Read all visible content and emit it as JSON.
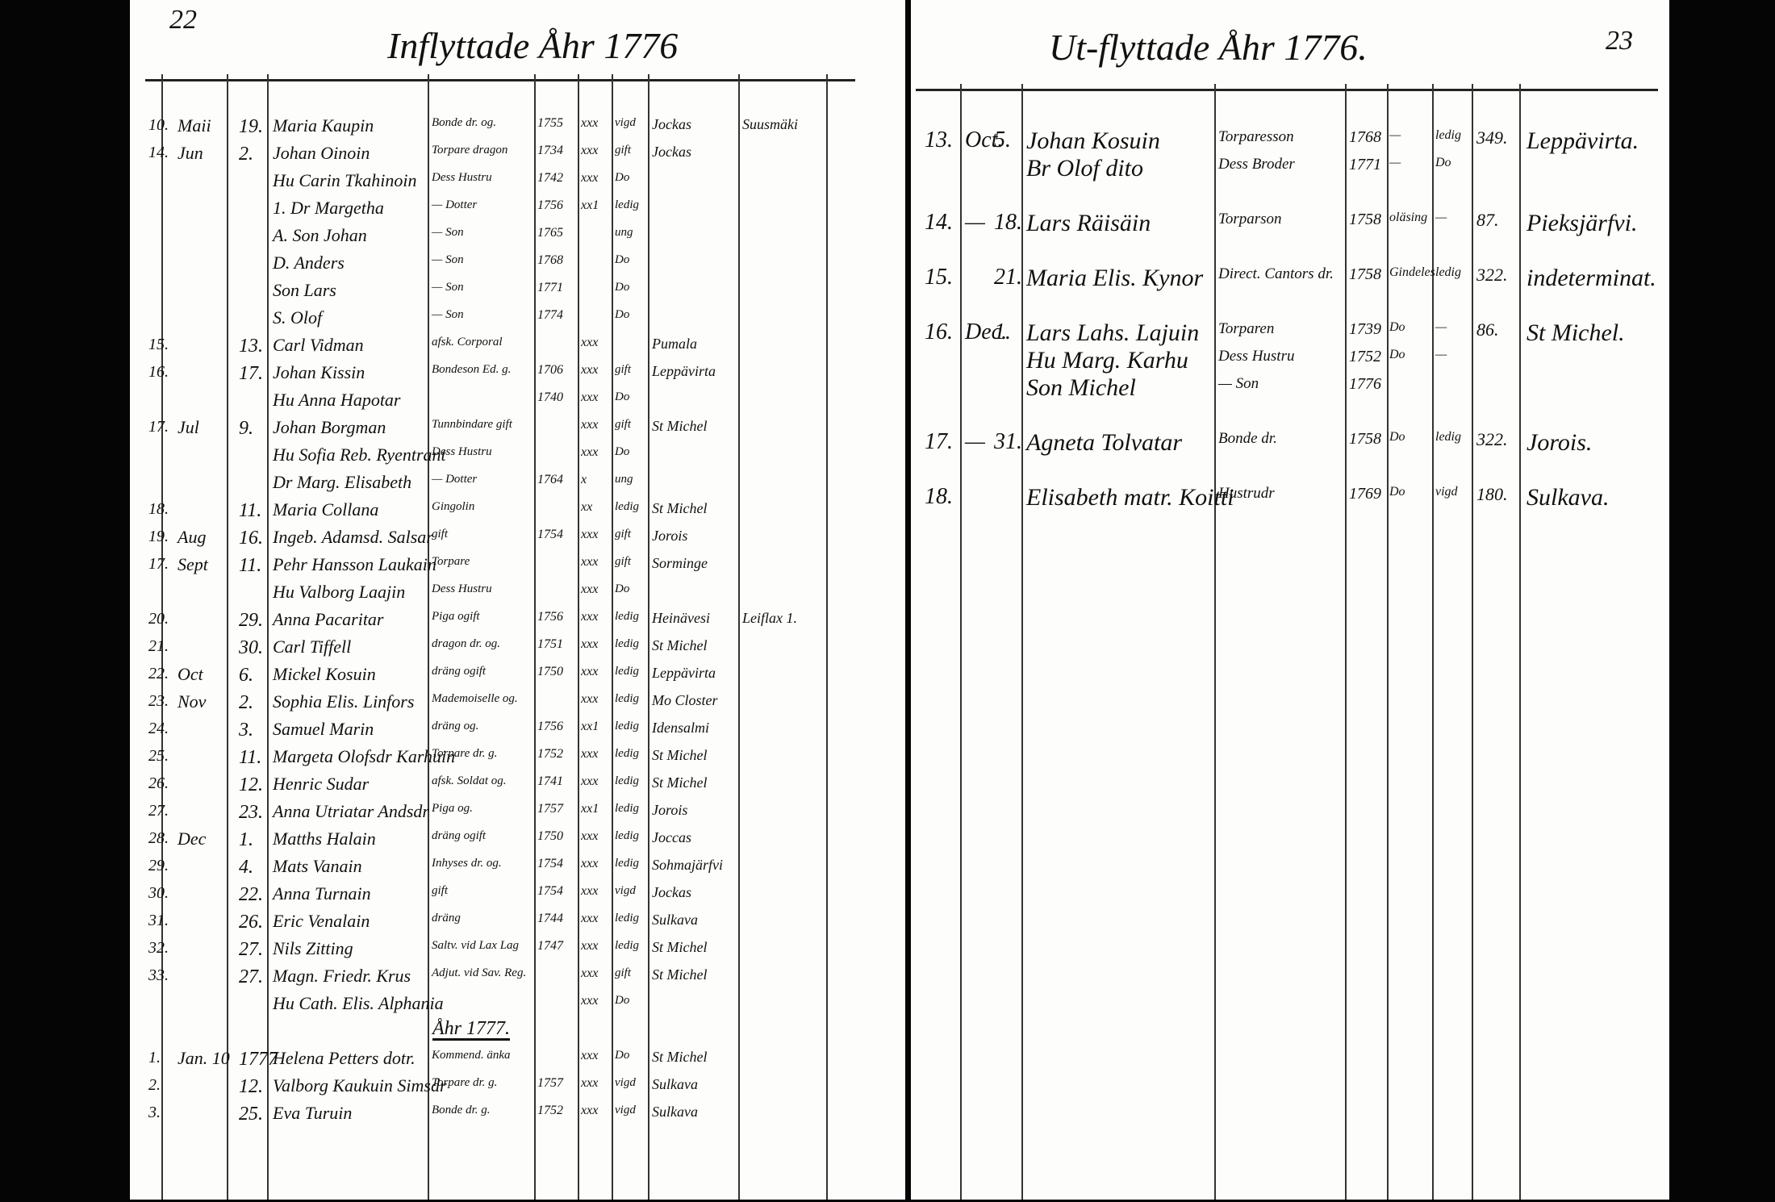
{
  "left_page": {
    "page_number": "22",
    "title": "Inflyttade Åhr 1776",
    "lines_1776": [
      {
        "no": "10.",
        "month": "Maii",
        "day": "19.",
        "name": "Maria Kaupin",
        "status": "Bonde dr. og.",
        "year": "1755",
        "marks": "xxx",
        "civil": "vigd",
        "parish": "Jockas",
        "note": "Suusmäki"
      },
      {
        "no": "14.",
        "month": "Jun",
        "day": "2.",
        "name": "Johan Oinoin",
        "status": "Torpare dragon",
        "year": "1734",
        "marks": "xxx",
        "civil": "gift",
        "parish": "Jockas"
      },
      {
        "name": "Hu Carin Tkahinoin",
        "status": "Dess Hustru",
        "year": "1742",
        "marks": "xxx",
        "civil": "Do"
      },
      {
        "name": "1. Dr Margetha",
        "status": "— Dotter",
        "year": "1756",
        "marks": "xx1",
        "civil": "ledig"
      },
      {
        "name": "A. Son Johan",
        "status": "— Son",
        "year": "1765",
        "civil": "ung"
      },
      {
        "name": "D. Anders",
        "status": "— Son",
        "year": "1768",
        "civil": "Do"
      },
      {
        "name": "Son Lars",
        "status": "— Son",
        "year": "1771",
        "civil": "Do"
      },
      {
        "name": "S. Olof",
        "status": "— Son",
        "year": "1774",
        "civil": "Do"
      },
      {
        "no": "15.",
        "day": "13.",
        "name": "Carl Vidman",
        "status": "afsk. Corporal",
        "marks": "xxx",
        "parish": "Pumala"
      },
      {
        "no": "16.",
        "day": "17.",
        "name": "Johan Kissin",
        "status": "Bondeson Ed. g.",
        "year": "1706",
        "marks": "xxx",
        "civil": "gift",
        "parish": "Leppävirta"
      },
      {
        "name": "Hu Anna Hapotar",
        "year": "1740",
        "marks": "xxx",
        "civil": "Do"
      },
      {
        "no": "17.",
        "month": "Jul",
        "day": "9.",
        "name": "Johan Borgman",
        "status": "Tunnbindare gift",
        "marks": "xxx",
        "civil": "gift",
        "parish": "St Michel"
      },
      {
        "name": "Hu Sofia Reb. Ryentrant",
        "status": "Dess Hustru",
        "marks": "xxx",
        "civil": "Do"
      },
      {
        "name": "Dr Marg. Elisabeth",
        "status": "— Dotter",
        "year": "1764",
        "marks": "x",
        "civil": "ung"
      },
      {
        "no": "18.",
        "day": "11.",
        "name": "Maria Collana",
        "status": "Gingolin",
        "marks": "xx",
        "civil": "ledig",
        "parish": "St Michel"
      },
      {
        "no": "19.",
        "month": "Aug",
        "day": "16.",
        "name": "Ingeb. Adamsd. Salsar",
        "status": "gift",
        "year": "1754",
        "marks": "xxx",
        "civil": "gift",
        "parish": "Jorois"
      },
      {
        "no": "17.",
        "month": "Sept",
        "day": "11.",
        "name": "Pehr Hansson Laukain",
        "status": "Torpare",
        "marks": "xxx",
        "civil": "gift",
        "parish": "Sorminge"
      },
      {
        "name": "Hu Valborg Laajin",
        "status": "Dess Hustru",
        "marks": "xxx",
        "civil": "Do"
      },
      {
        "no": "20.",
        "day": "29.",
        "name": "Anna Pacaritar",
        "status": "Piga ogift",
        "year": "1756",
        "marks": "xxx",
        "civil": "ledig",
        "parish": "Heinävesi",
        "note": "Leiflax 1."
      },
      {
        "no": "21.",
        "day": "30.",
        "name": "Carl Tiffell",
        "status": "dragon dr. og.",
        "year": "1751",
        "marks": "xxx",
        "civil": "ledig",
        "parish": "St Michel"
      },
      {
        "no": "22.",
        "month": "Oct",
        "day": "6.",
        "name": "Mickel Kosuin",
        "status": "dräng ogift",
        "year": "1750",
        "marks": "xxx",
        "civil": "ledig",
        "parish": "Leppävirta"
      },
      {
        "no": "23.",
        "month": "Nov",
        "day": "2.",
        "name": "Sophia Elis. Linfors",
        "status": "Mademoiselle og.",
        "marks": "xxx",
        "civil": "ledig",
        "parish": "Mo Closter"
      },
      {
        "no": "24.",
        "day": "3.",
        "name": "Samuel Marin",
        "status": "dräng og.",
        "year": "1756",
        "marks": "xx1",
        "civil": "ledig",
        "parish": "Idensalmi"
      },
      {
        "no": "25.",
        "day": "11.",
        "name": "Margeta Olofsdr Karhuin",
        "status": "Torpare dr. g.",
        "year": "1752",
        "marks": "xxx",
        "civil": "ledig",
        "parish": "St Michel"
      },
      {
        "no": "26.",
        "day": "12.",
        "name": "Henric Sudar",
        "status": "afsk. Soldat og.",
        "year": "1741",
        "marks": "xxx",
        "civil": "ledig",
        "parish": "St Michel"
      },
      {
        "no": "27.",
        "day": "23.",
        "name": "Anna Utriatar Andsdr",
        "status": "Piga og.",
        "year": "1757",
        "marks": "xx1",
        "civil": "ledig",
        "parish": "Jorois"
      },
      {
        "no": "28.",
        "month": "Dec",
        "day": "1.",
        "name": "Matths Halain",
        "status": "dräng ogift",
        "year": "1750",
        "marks": "xxx",
        "civil": "ledig",
        "parish": "Joccas"
      },
      {
        "no": "29.",
        "day": "4.",
        "name": "Mats Vanain",
        "status": "Inhyses dr. og.",
        "year": "1754",
        "marks": "xxx",
        "civil": "ledig",
        "parish": "Sohmajärfvi"
      },
      {
        "no": "30.",
        "day": "22.",
        "name": "Anna Turnain",
        "status": "gift",
        "year": "1754",
        "marks": "xxx",
        "civil": "vigd",
        "parish": "Jockas"
      },
      {
        "no": "31.",
        "day": "26.",
        "name": "Eric Venalain",
        "status": "dräng",
        "year": "1744",
        "marks": "xxx",
        "civil": "ledig",
        "parish": "Sulkava"
      },
      {
        "no": "32.",
        "day": "27.",
        "name": "Nils Zitting",
        "status": "Saltv. vid Lax Lag",
        "year": "1747",
        "marks": "xxx",
        "civil": "ledig",
        "parish": "St Michel"
      },
      {
        "no": "33.",
        "day": "27.",
        "name": "Magn. Friedr. Krus",
        "status": "Adjut. vid Sav. Reg.",
        "marks": "xxx",
        "civil": "gift",
        "parish": "St Michel"
      },
      {
        "name": "Hu Cath. Elis. Alphania",
        "marks": "xxx",
        "civil": "Do"
      }
    ],
    "year_heading": "Åhr 1777.",
    "lines_1777": [
      {
        "no": "1.",
        "month": "Jan. 10",
        "day": "1777",
        "name": "Helena Petters dotr.",
        "status": "Kommend. änka",
        "marks": "xxx",
        "civil": "Do",
        "parish": "St Michel"
      },
      {
        "no": "2.",
        "day": "12.",
        "name": "Valborg Kaukuin Simsdr",
        "status": "Torpare dr. g.",
        "year": "1757",
        "marks": "xxx",
        "civil": "vigd",
        "parish": "Sulkava"
      },
      {
        "no": "3.",
        "day": "25.",
        "name": "Eva Turuin",
        "status": "Bonde dr. g.",
        "year": "1752",
        "marks": "xxx",
        "civil": "vigd",
        "parish": "Sulkava"
      }
    ]
  },
  "right_page": {
    "page_number": "23",
    "title": "Ut-flyttade Åhr 1776.",
    "rows": [
      {
        "lines": [
          {
            "no": "13.",
            "month": "Oct.",
            "day": "5.",
            "name": "Johan Kosuin",
            "status": "Torparesson",
            "year": "1768",
            "read": "—",
            "civil": "ledig",
            "number": "349.",
            "parish": "Leppävirta."
          },
          {
            "name": "Br Olof dito",
            "status": "Dess Broder",
            "year": "1771",
            "read": "—",
            "civil": "Do"
          }
        ]
      },
      {
        "lines": [
          {
            "no": "14.",
            "month": "—",
            "day": "18.",
            "name": "Lars Räisäin",
            "status": "Torparson",
            "year": "1758",
            "read": "oläsing",
            "civil": "—",
            "number": "87.",
            "parish": "Pieksjärfvi."
          }
        ]
      },
      {
        "lines": [
          {
            "no": "15.",
            "day": "21.",
            "name": "Maria Elis. Kynor",
            "status": "Direct. Cantors dr.",
            "year": "1758",
            "read": "Gindeles",
            "civil": "ledig",
            "number": "322.",
            "parish": "indeterminat."
          }
        ]
      },
      {
        "lines": [
          {
            "no": "16.",
            "month": "Dec.",
            "day": "1.",
            "name": "Lars Lahs. Lajuin",
            "status": "Torparen",
            "year": "1739",
            "read": "Do",
            "civil": "—",
            "number": "86.",
            "parish": "St Michel."
          },
          {
            "name": "Hu Marg. Karhu",
            "status": "Dess Hustru",
            "year": "1752",
            "read": "Do",
            "civil": "—"
          },
          {
            "name": "Son Michel",
            "status": "— Son",
            "year": "1776"
          }
        ]
      },
      {
        "lines": [
          {
            "no": "17.",
            "month": "—",
            "day": "31.",
            "name": "Agneta Tolvatar",
            "status": "Bonde dr.",
            "year": "1758",
            "read": "Do",
            "civil": "ledig",
            "number": "322.",
            "parish": "Jorois."
          }
        ]
      },
      {
        "lines": [
          {
            "no": "18.",
            "name": "Elisabeth matr. Koitti",
            "status": "Hustrudr",
            "year": "1769",
            "read": "Do",
            "civil": "vigd",
            "number": "180.",
            "parish": "Sulkava."
          }
        ]
      }
    ]
  }
}
